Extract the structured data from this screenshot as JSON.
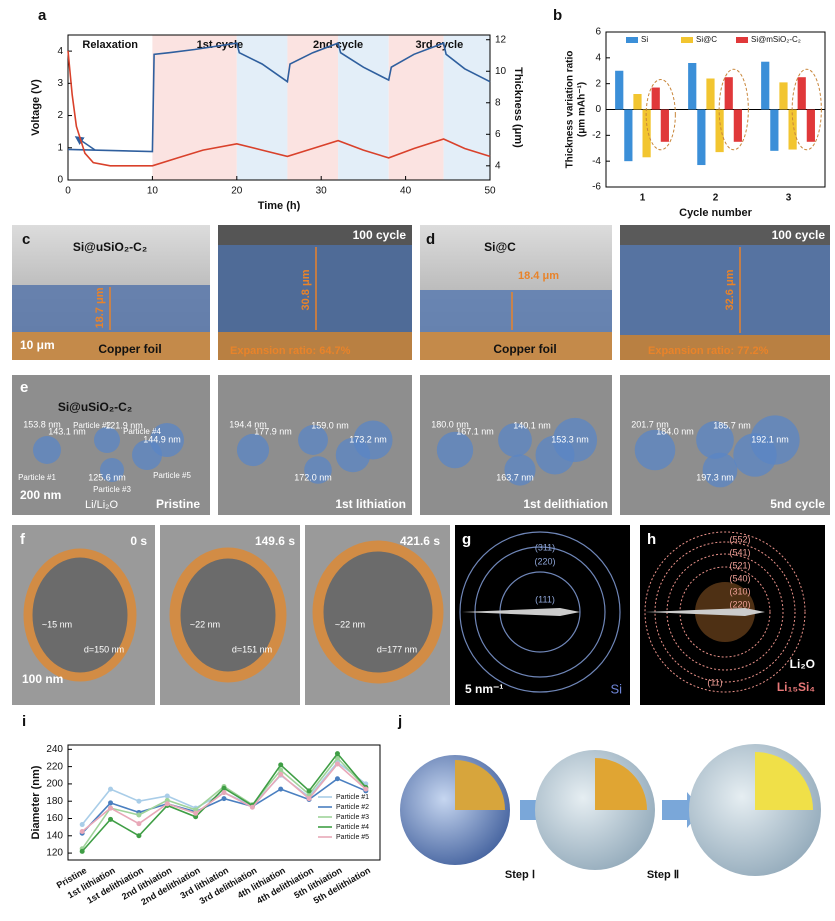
{
  "chart_data": [
    {
      "type": "line",
      "xlabel": "Time (h)",
      "ylabel": "Voltage (V)",
      "y2label": "Thickness (μm)",
      "xlim": [
        0,
        50
      ],
      "xticks": [
        0,
        10,
        20,
        30,
        40,
        50
      ],
      "ylim": [
        0,
        4.5
      ],
      "yticks": [
        0,
        1,
        2,
        3,
        4
      ],
      "y2lim": [
        3.1,
        12.3
      ],
      "y2ticks": [
        4,
        6,
        8,
        10,
        12
      ],
      "annotations": [
        "Relaxation",
        "1st cycle",
        "2nd cycle",
        "3rd cycle"
      ],
      "regions": [
        {
          "start": 10,
          "end": 20,
          "color": "#fbe3e1"
        },
        {
          "start": 20,
          "end": 26,
          "color": "#e3eef8"
        },
        {
          "start": 26,
          "end": 32,
          "color": "#fbe3e1"
        },
        {
          "start": 32,
          "end": 38,
          "color": "#e3eef8"
        },
        {
          "start": 38,
          "end": 44.5,
          "color": "#fbe3e1"
        },
        {
          "start": 44.5,
          "end": 50,
          "color": "#e3eef8"
        }
      ],
      "series": [
        {
          "color": "#2f5f9e",
          "x": [
            0,
            10,
            10.2,
            12,
            15,
            20,
            20.3,
            23,
            26,
            26.3,
            29,
            32,
            32.3,
            35,
            38,
            38.3,
            41,
            44.5,
            44.8,
            47,
            50
          ],
          "values": [
            0.95,
            0.88,
            3.9,
            3.95,
            4.05,
            4.25,
            3.95,
            3.6,
            3.05,
            3.6,
            3.95,
            4.25,
            3.95,
            3.5,
            3.1,
            3.5,
            3.9,
            4.25,
            3.9,
            3.45,
            3.05
          ]
        },
        {
          "color": "#d9412b",
          "axis": "y2",
          "x": [
            0,
            0.5,
            1,
            2,
            3,
            5,
            10,
            13,
            16,
            20,
            23,
            26,
            29,
            32,
            35,
            38,
            41,
            44.5,
            47,
            50
          ],
          "values": [
            11.3,
            8.5,
            6.5,
            4.8,
            4.2,
            4.0,
            4.0,
            4.5,
            5.0,
            5.4,
            5.0,
            4.6,
            5.1,
            5.6,
            5.0,
            4.5,
            5.1,
            5.7,
            5.1,
            4.6
          ]
        }
      ]
    },
    {
      "type": "bar",
      "xlabel": "Cycle number",
      "ylabel": [
        "Thickness variation ratio",
        "(μm mAh⁻¹)"
      ],
      "categories": [
        "1",
        "2",
        "3"
      ],
      "ylim": [
        -6,
        6
      ],
      "yticks": [
        -6,
        -4,
        -2,
        0,
        2,
        4,
        6
      ],
      "legend": "top",
      "series": [
        {
          "name": "Si",
          "color": "#3b8fd8",
          "values": [
            3.0,
            3.6,
            3.7
          ],
          "negative_values": [
            -4.0,
            -4.3,
            -3.2
          ]
        },
        {
          "name": "Si@C",
          "color": "#f2c530",
          "values": [
            1.2,
            2.4,
            2.1
          ],
          "negative_values": [
            -3.7,
            -3.3,
            -3.1
          ]
        },
        {
          "name": "Si@mSiO₂-C₂",
          "color": "#e0383a",
          "values": [
            1.7,
            2.5,
            2.5
          ],
          "negative_values": [
            -2.5,
            -2.5,
            -2.5
          ]
        }
      ]
    },
    {
      "type": "line",
      "ylabel": "Diameter (nm)",
      "legend": "right",
      "markers": true,
      "categories": [
        "Pristine",
        "1st lithiation",
        "1st delithiation",
        "2nd lithiation",
        "2nd delithiation",
        "3rd lithiation",
        "3rd delithiation",
        "4th lithiation",
        "4th delithiation",
        "5th lithiation",
        "5th delithiation"
      ],
      "ylim": [
        112,
        245
      ],
      "yticks": [
        120,
        140,
        160,
        180,
        200,
        220,
        240
      ],
      "series": [
        {
          "name": "Particle #1",
          "color": "#a9cde8",
          "values": [
            153,
            194,
            180,
            186,
            172,
            190,
            175,
            210,
            185,
            225,
            200
          ]
        },
        {
          "name": "Particle #2",
          "color": "#4a7fc0",
          "values": [
            143,
            178,
            167,
            177,
            168,
            183,
            174,
            194,
            182,
            206,
            192
          ]
        },
        {
          "name": "Particle #3",
          "color": "#9fd39a",
          "values": [
            125,
            172,
            164,
            181,
            170,
            197,
            176,
            216,
            188,
            230,
            195
          ]
        },
        {
          "name": "Particle #4",
          "color": "#3f9e45",
          "values": [
            122,
            159,
            140,
            175,
            162,
            195,
            175,
            222,
            192,
            235,
            196
          ]
        },
        {
          "name": "Particle #5",
          "color": "#e8a8b8",
          "values": [
            145,
            172,
            154,
            177,
            166,
            190,
            173,
            211,
            183,
            223,
            194
          ]
        }
      ]
    }
  ],
  "panels": {
    "letters": [
      "a",
      "b",
      "c",
      "d",
      "e",
      "f",
      "g",
      "h",
      "i",
      "j"
    ],
    "c": {
      "left": {
        "title": "Si@uSiO₂-C₂",
        "thickness": "18.7 μm",
        "scale": "10 μm",
        "substrate": "Copper foil"
      },
      "right": {
        "title": "100 cycle",
        "thickness": "30.8 μm",
        "note": "Expansion ratio: 64.7%"
      }
    },
    "d": {
      "left": {
        "title": "Si@C",
        "thickness": "18.4 μm",
        "substrate": "Copper foil"
      },
      "right": {
        "title": "100 cycle",
        "thickness": "32.6 μm",
        "note": "Expansion ratio: 77.2%"
      }
    },
    "e": {
      "sample": "Si@uSiO₂-C₂",
      "scale": "200 nm",
      "electrode": "Li/Li₂O",
      "particles": [
        "Particle #1",
        "Particle #2",
        "Particle #3",
        "Particle #4",
        "Particle #5"
      ],
      "frames": [
        {
          "stage": "Pristine",
          "sizes": [
            "153.8 nm",
            "143.1 nm",
            "121.9 nm",
            "144.9 nm",
            "125.6 nm"
          ]
        },
        {
          "stage": "1st lithiation",
          "sizes": [
            "194.4 nm",
            "177.9 nm",
            "159.0 nm",
            "173.2 nm",
            "172.0 nm"
          ]
        },
        {
          "stage": "1st delithiation",
          "sizes": [
            "180.0 nm",
            "167.1 nm",
            "140.1 nm",
            "153.3 nm",
            "163.7 nm"
          ]
        },
        {
          "stage": "5nd cycle",
          "sizes": [
            "201.7 nm",
            "184.0 nm",
            "185.7 nm",
            "192.1 nm",
            "197.3 nm"
          ]
        }
      ]
    },
    "f": {
      "scale": "100 nm",
      "frames": [
        {
          "time": "0 s",
          "shell": "~15 nm",
          "diameter": "d=150 nm"
        },
        {
          "time": "149.6 s",
          "shell": "~22 nm",
          "diameter": "d=151 nm"
        },
        {
          "time": "421.6 s",
          "shell": "~22 nm",
          "diameter": "d=177 nm"
        }
      ]
    },
    "g": {
      "rings": [
        "(311)",
        "(220)",
        "(111)"
      ],
      "scale": "5 nm⁻¹",
      "phase": "Si"
    },
    "h": {
      "rings": [
        "(552)",
        "(541)",
        "(521)",
        "(540)",
        "(310)",
        "(220)",
        "(11)"
      ],
      "phases": [
        "Li₂O",
        "Li₁₅Si₄"
      ]
    },
    "j": {
      "steps": [
        "Step Ⅰ",
        "Step Ⅱ"
      ]
    }
  }
}
